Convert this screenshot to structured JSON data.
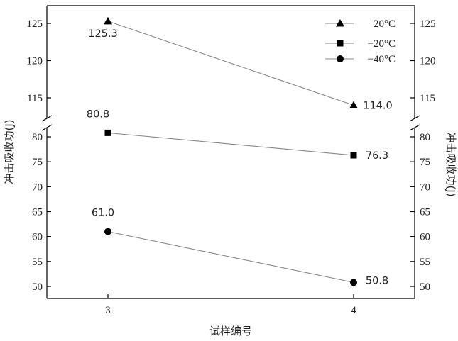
{
  "chart_data": {
    "type": "line",
    "xlabel": "试样编号",
    "ylabel_left": "冲击吸收功(J)",
    "ylabel_right": "冲击吸收功(J)",
    "categories": [
      "3",
      "4"
    ],
    "axis_break": {
      "lower_range": [
        47,
        83
      ],
      "upper_range": [
        112,
        127
      ]
    },
    "yticks": [
      50,
      55,
      60,
      65,
      70,
      75,
      80,
      115,
      120,
      125
    ],
    "grid": false,
    "legend_position": "top-right",
    "series": [
      {
        "name": "20°C",
        "marker": "triangle",
        "values": [
          125.3,
          114.0
        ],
        "labels": [
          "125.3",
          "114.0"
        ]
      },
      {
        "name": "−20°C",
        "marker": "square",
        "values": [
          80.8,
          76.3
        ],
        "labels": [
          "80.8",
          "76.3"
        ]
      },
      {
        "name": "−40°C",
        "marker": "circle",
        "values": [
          61.0,
          50.8
        ],
        "labels": [
          "61.0",
          "50.8"
        ]
      }
    ],
    "colors": {
      "line": "#888888",
      "marker": "#000000",
      "axis": "#000000"
    }
  }
}
